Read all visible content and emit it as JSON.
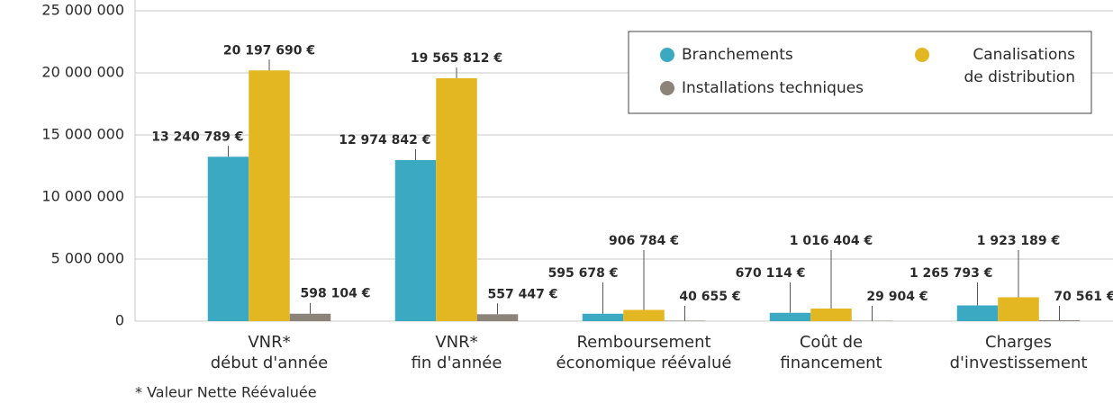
{
  "chart_data": {
    "type": "bar",
    "categories": [
      "VNR*\ndébut d'année",
      "VNR*\nfin d'année",
      "Remboursement\néconomique réévalué",
      "Coût de\nfinancement",
      "Charges\nd'investissement"
    ],
    "series": [
      {
        "name": "Branchements",
        "color": "#3aa9c1",
        "values": [
          13240789,
          12974842,
          595678,
          670114,
          1265793
        ],
        "value_labels": [
          "13 240 789 €",
          "12 974 842 €",
          "595 678 €",
          "670 114 €",
          "1 265 793 €"
        ]
      },
      {
        "name": "Canalisations\nde distribution",
        "color": "#e3b722",
        "values": [
          20197690,
          19565812,
          906784,
          1016404,
          1923189
        ],
        "value_labels": [
          "20 197 690 €",
          "19 565 812 €",
          "906 784 €",
          "1 016 404 €",
          "1 923 189 €"
        ]
      },
      {
        "name": "Installations techniques",
        "color": "#8c8479",
        "values": [
          598104,
          557447,
          40655,
          29904,
          70561
        ],
        "value_labels": [
          "598 104 €",
          "557 447 €",
          "40 655 €",
          "29 904 €",
          "70 561 €"
        ]
      }
    ],
    "ylim": [
      0,
      25000000
    ],
    "yticks": [
      0,
      {
        "value": 5000000,
        "label": "5 000 000"
      },
      {
        "value": 10000000,
        "label": "10 000 000"
      },
      {
        "value": 15000000,
        "label": "15 000 000"
      },
      {
        "value": 20000000,
        "label": "20 000 000"
      },
      {
        "value": 25000000,
        "label": "25 000 000"
      }
    ],
    "grid": true,
    "legend": "upper right",
    "footnote": "* Valeur Nette Réévaluée"
  }
}
